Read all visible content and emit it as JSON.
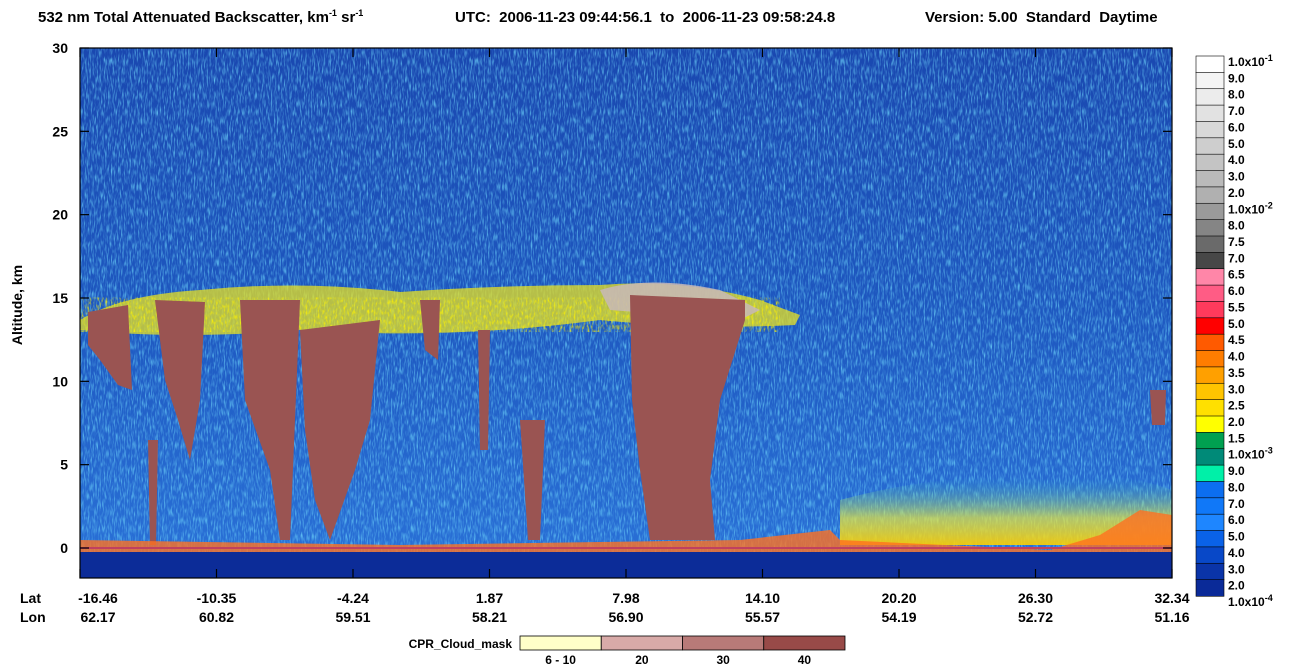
{
  "chart_data": {
    "type": "image",
    "title_parts": [
      "532 nm Total Attenuated Backscatter, km",
      "-1",
      " sr",
      "-1",
      "UTC:  2006-11-23 09:44:56.1  to  2006-11-23 09:58:24.8",
      "Version: 5.00  Standard  Daytime"
    ],
    "ylabel": "Altitude, km",
    "ylim": [
      -1.8,
      30
    ],
    "yticks": [
      0,
      5,
      10,
      15,
      20,
      25,
      30
    ],
    "x_rows": [
      {
        "label": "Lat",
        "values": [
          "-16.46",
          "-10.35",
          "-4.24",
          "1.87",
          "7.98",
          "14.10",
          "20.20",
          "26.30",
          "32.34"
        ]
      },
      {
        "label": "Lon",
        "values": [
          "62.17",
          "60.82",
          "59.51",
          "58.21",
          "56.90",
          "55.57",
          "54.19",
          "52.72",
          "51.16"
        ]
      }
    ],
    "colorbar": {
      "colors": [
        "#ffffff",
        "#f4f4f4",
        "#ececec",
        "#e2e2e2",
        "#d8d8d8",
        "#cecece",
        "#c4c4c4",
        "#bababa",
        "#b0b0b0",
        "#9a9a9a",
        "#858585",
        "#6a6a6a",
        "#474747",
        "#ff86a8",
        "#ff5c85",
        "#ff3a5c",
        "#ff0000",
        "#ff5a00",
        "#ff7d00",
        "#ffa000",
        "#ffc400",
        "#ffe000",
        "#ffff00",
        "#00a050",
        "#008a78",
        "#00f0a8",
        "#0c6ef0",
        "#1078f8",
        "#1e86ff",
        "#0a62e8",
        "#0848c8",
        "#0a34a8",
        "#0a2a98"
      ],
      "labels": [
        {
          "text": "1.0x10",
          "sup": "-1"
        },
        "9.0",
        "8.0",
        "7.0",
        "6.0",
        "5.0",
        "4.0",
        "3.0",
        "2.0",
        {
          "text": "1.0x10",
          "sup": "-2"
        },
        "8.0",
        "7.5",
        "7.0",
        "6.5",
        "6.0",
        "5.5",
        "5.0",
        "4.5",
        "4.0",
        "3.5",
        "3.0",
        "2.5",
        "2.0",
        "1.5",
        {
          "text": "1.0x10",
          "sup": "-3"
        },
        "9.0",
        "8.0",
        "7.0",
        "6.0",
        "5.0",
        "4.0",
        "3.0",
        "2.0",
        {
          "text": "1.0x10",
          "sup": "-4"
        }
      ]
    },
    "cpr_legend": {
      "title": "CPR_Cloud_mask",
      "items": [
        {
          "label": "6 - 10",
          "color": "#ffffc8"
        },
        {
          "label": "20",
          "color": "#d8aaa8"
        },
        {
          "label": "30",
          "color": "#b87a78"
        },
        {
          "label": "40",
          "color": "#984a48"
        }
      ]
    }
  }
}
